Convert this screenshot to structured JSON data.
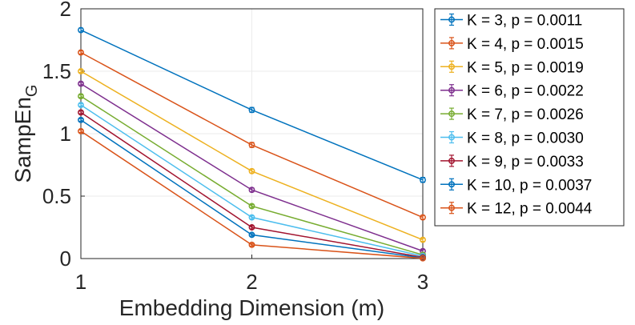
{
  "chart_data": {
    "type": "line",
    "xlabel": "Embedding Dimension (m)",
    "ylabel_main": "SampEn",
    "ylabel_sub": "G",
    "xlim": [
      1,
      3
    ],
    "ylim": [
      0,
      2
    ],
    "xticks": [
      "1",
      "2",
      "3"
    ],
    "yticks": [
      "0",
      "0.5",
      "1",
      "1.5",
      "2"
    ],
    "grid": true,
    "legend_position": "outside-right",
    "x": [
      1,
      2,
      3
    ],
    "series": [
      {
        "name": "K = 3, p = 0.0011",
        "color": "#0072BD",
        "values": [
          1.83,
          1.19,
          0.63
        ],
        "err": [
          0.015,
          0.02,
          0.02
        ]
      },
      {
        "name": "K = 4, p = 0.0015",
        "color": "#D95319",
        "values": [
          1.65,
          0.91,
          0.33
        ],
        "err": [
          0.012,
          0.02,
          0.015
        ]
      },
      {
        "name": "K = 5, p = 0.0019",
        "color": "#EDB120",
        "values": [
          1.5,
          0.7,
          0.15
        ],
        "err": [
          0.01,
          0.015,
          0.012
        ]
      },
      {
        "name": "K = 6, p = 0.0022",
        "color": "#7E2F8E",
        "values": [
          1.4,
          0.55,
          0.06
        ],
        "err": [
          0.01,
          0.015,
          0.01
        ]
      },
      {
        "name": "K = 7, p = 0.0026",
        "color": "#77AC30",
        "values": [
          1.3,
          0.42,
          0.03
        ],
        "err": [
          0.01,
          0.012,
          0.008
        ]
      },
      {
        "name": "K = 8, p = 0.0030",
        "color": "#4DBEEE",
        "values": [
          1.23,
          0.33,
          0.02
        ],
        "err": [
          0.01,
          0.012,
          0.008
        ]
      },
      {
        "name": "K = 9, p = 0.0033",
        "color": "#A2142F",
        "values": [
          1.17,
          0.25,
          0.01
        ],
        "err": [
          0.01,
          0.012,
          0.006
        ]
      },
      {
        "name": "K = 10, p = 0.0037",
        "color": "#0072BD",
        "values": [
          1.11,
          0.19,
          0.005
        ],
        "err": [
          0.01,
          0.01,
          0.005
        ]
      },
      {
        "name": "K = 12, p = 0.0044",
        "color": "#D95319",
        "values": [
          1.02,
          0.11,
          0.002
        ],
        "err": [
          0.01,
          0.01,
          0.005
        ]
      }
    ]
  }
}
